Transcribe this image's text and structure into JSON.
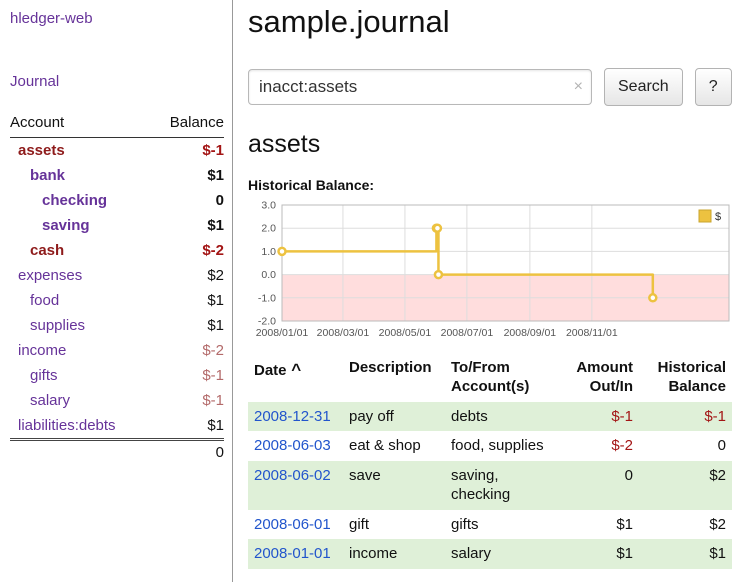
{
  "colors": {
    "purple": "#663399",
    "maroon": "#8e1b1b",
    "negative_strong": "#a31515",
    "negative_soft": "#b36a6a",
    "link_blue": "#2255cc",
    "row_green": "#dff0d8",
    "chart_line": "#edc240",
    "chart_negative_bg": "#ffdddd"
  },
  "sidebar": {
    "app_title": "hledger-web",
    "journal_link": "Journal",
    "accounts_header": {
      "account": "Account",
      "balance": "Balance"
    },
    "accounts": [
      {
        "name": "assets",
        "depth": 1,
        "in_view": true,
        "balance": "$-1",
        "negative": true
      },
      {
        "name": "bank",
        "depth": 2,
        "in_view": true,
        "balance": "$1",
        "negative": false
      },
      {
        "name": "checking",
        "depth": 3,
        "in_view": true,
        "balance": "0",
        "negative": false
      },
      {
        "name": "saving",
        "depth": 3,
        "in_view": true,
        "balance": "$1",
        "negative": false
      },
      {
        "name": "cash",
        "depth": 2,
        "in_view": true,
        "balance": "$-2",
        "negative": true
      },
      {
        "name": "expenses",
        "depth": 1,
        "in_view": false,
        "balance": "$2",
        "negative": false
      },
      {
        "name": "food",
        "depth": 2,
        "in_view": false,
        "balance": "$1",
        "negative": false
      },
      {
        "name": "supplies",
        "depth": 2,
        "in_view": false,
        "balance": "$1",
        "negative": false
      },
      {
        "name": "income",
        "depth": 1,
        "in_view": false,
        "balance": "$-2",
        "negative": true
      },
      {
        "name": "gifts",
        "depth": 2,
        "in_view": false,
        "balance": "$-1",
        "negative": true
      },
      {
        "name": "salary",
        "depth": 2,
        "in_view": false,
        "balance": "$-1",
        "negative": true
      },
      {
        "name": "liabilities:debts",
        "depth": 1,
        "in_view": false,
        "balance": "$1",
        "negative": false
      }
    ],
    "total": "0"
  },
  "main": {
    "title": "sample.journal",
    "search": {
      "value": "inacct:assets",
      "clear_icon": "×",
      "button_label": "Search",
      "help_label": "?"
    },
    "account_heading": "assets",
    "chart_title": "Historical Balance:"
  },
  "chart_data": {
    "type": "line",
    "step": true,
    "title": "Historical Balance",
    "series": [
      {
        "name": "$",
        "color": "#edc240",
        "points": [
          [
            "2008-01-01",
            1
          ],
          [
            "2008-06-01",
            2
          ],
          [
            "2008-06-02",
            2
          ],
          [
            "2008-06-03",
            0
          ],
          [
            "2008-12-31",
            -1
          ]
        ]
      }
    ],
    "ylim": [
      -2.0,
      3.0
    ],
    "yticks": [
      "3.0",
      "2.0",
      "1.0",
      "0.0",
      "-1.0",
      "-2.0"
    ],
    "xticks": [
      "2008/01/01",
      "2008/03/01",
      "2008/05/01",
      "2008/07/01",
      "2008/09/01",
      "2008/11/01"
    ],
    "xlim": [
      "2008-01-01",
      "2009-03-16"
    ],
    "grid": true,
    "legend_position": "top-right",
    "legend_label": "$",
    "negative_region": true
  },
  "register": {
    "headers": [
      {
        "lines": [
          "Date"
        ],
        "align": "left",
        "sort_indicator": "^"
      },
      {
        "lines": [
          "Description"
        ],
        "align": "left"
      },
      {
        "lines": [
          "To/From",
          "Account(s)"
        ],
        "align": "left"
      },
      {
        "lines": [
          "Amount",
          "Out/In"
        ],
        "align": "right"
      },
      {
        "lines": [
          "Historical",
          "Balance"
        ],
        "align": "right"
      }
    ],
    "rows": [
      {
        "date": "2008-12-31",
        "description": "pay off",
        "accounts": "debts",
        "amount": "$-1",
        "amount_negative": true,
        "balance": "$-1",
        "balance_negative": true
      },
      {
        "date": "2008-06-03",
        "description": "eat & shop",
        "accounts": "food, supplies",
        "amount": "$-2",
        "amount_negative": true,
        "balance": "0",
        "balance_negative": false
      },
      {
        "date": "2008-06-02",
        "description": "save",
        "accounts": "saving,\nchecking",
        "amount": "0",
        "amount_negative": false,
        "balance": "$2",
        "balance_negative": false
      },
      {
        "date": "2008-06-01",
        "description": "gift",
        "accounts": "gifts",
        "amount": "$1",
        "amount_negative": false,
        "balance": "$2",
        "balance_negative": false
      },
      {
        "date": "2008-01-01",
        "description": "income",
        "accounts": "salary",
        "amount": "$1",
        "amount_negative": false,
        "balance": "$1",
        "balance_negative": false
      }
    ]
  }
}
